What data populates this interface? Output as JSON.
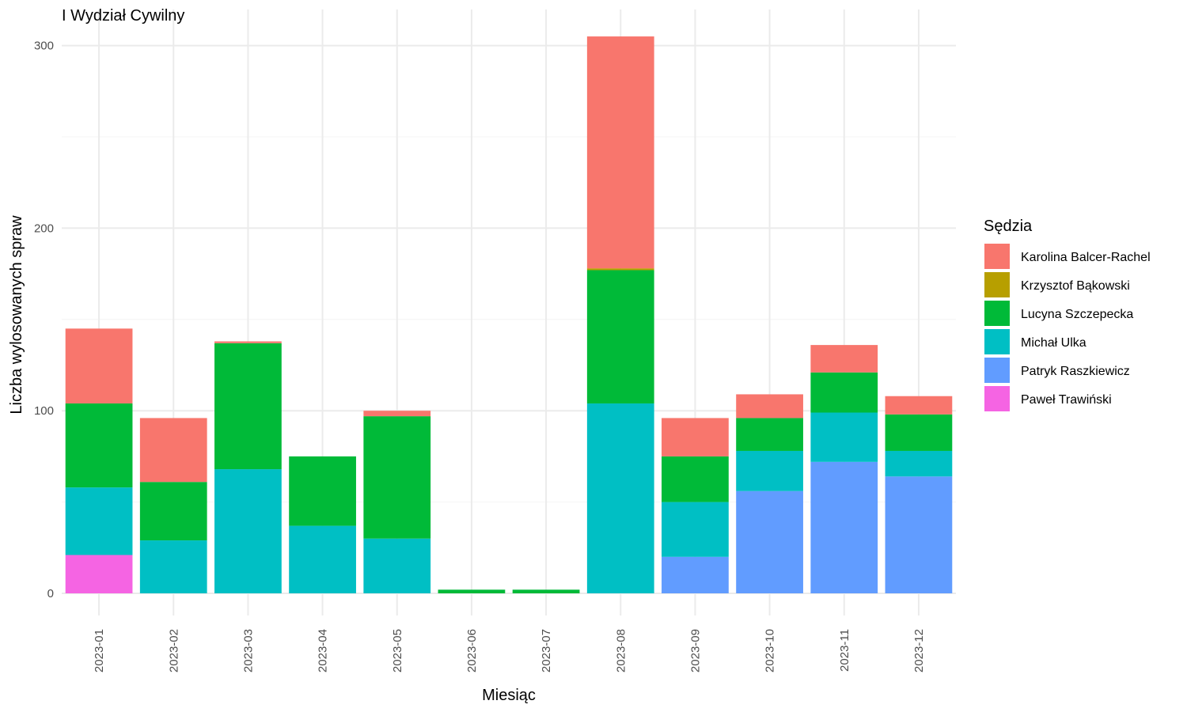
{
  "chart_data": {
    "type": "bar",
    "stacked": true,
    "title": "I Wydział Cywilny",
    "xlabel": "Miesiąc",
    "ylabel": "Liczba wylosowanych spraw",
    "ylim": [
      0,
      310
    ],
    "yticks": [
      0,
      100,
      200,
      300
    ],
    "grid": true,
    "legend_position": "right",
    "legend_title": "Sędzia",
    "categories": [
      "2023-01",
      "2023-02",
      "2023-03",
      "2023-04",
      "2023-05",
      "2023-06",
      "2023-07",
      "2023-08",
      "2023-09",
      "2023-10",
      "2023-11",
      "2023-12"
    ],
    "series": [
      {
        "name": "Karolina Balcer-Rachel",
        "color": "#F8766D",
        "values": [
          41,
          35,
          1,
          0,
          3,
          0,
          0,
          127,
          21,
          13,
          15,
          10
        ]
      },
      {
        "name": "Krzysztof Bąkowski",
        "color": "#B79F00",
        "values": [
          0,
          0,
          0,
          0,
          0,
          0,
          0,
          1,
          0,
          0,
          0,
          0
        ]
      },
      {
        "name": "Lucyna Szczepecka",
        "color": "#00BA38",
        "values": [
          46,
          32,
          69,
          38,
          67,
          2,
          2,
          73,
          25,
          18,
          22,
          20
        ]
      },
      {
        "name": "Michał Ulka",
        "color": "#00BFC4",
        "values": [
          37,
          29,
          68,
          37,
          30,
          0,
          0,
          104,
          30,
          22,
          27,
          14
        ]
      },
      {
        "name": "Patryk Raszkiewicz",
        "color": "#619CFF",
        "values": [
          0,
          0,
          0,
          0,
          0,
          0,
          0,
          0,
          20,
          56,
          72,
          64
        ]
      },
      {
        "name": "Paweł Trawiński",
        "color": "#F564E3",
        "values": [
          21,
          0,
          0,
          0,
          0,
          0,
          0,
          0,
          0,
          0,
          0,
          0
        ]
      }
    ]
  }
}
